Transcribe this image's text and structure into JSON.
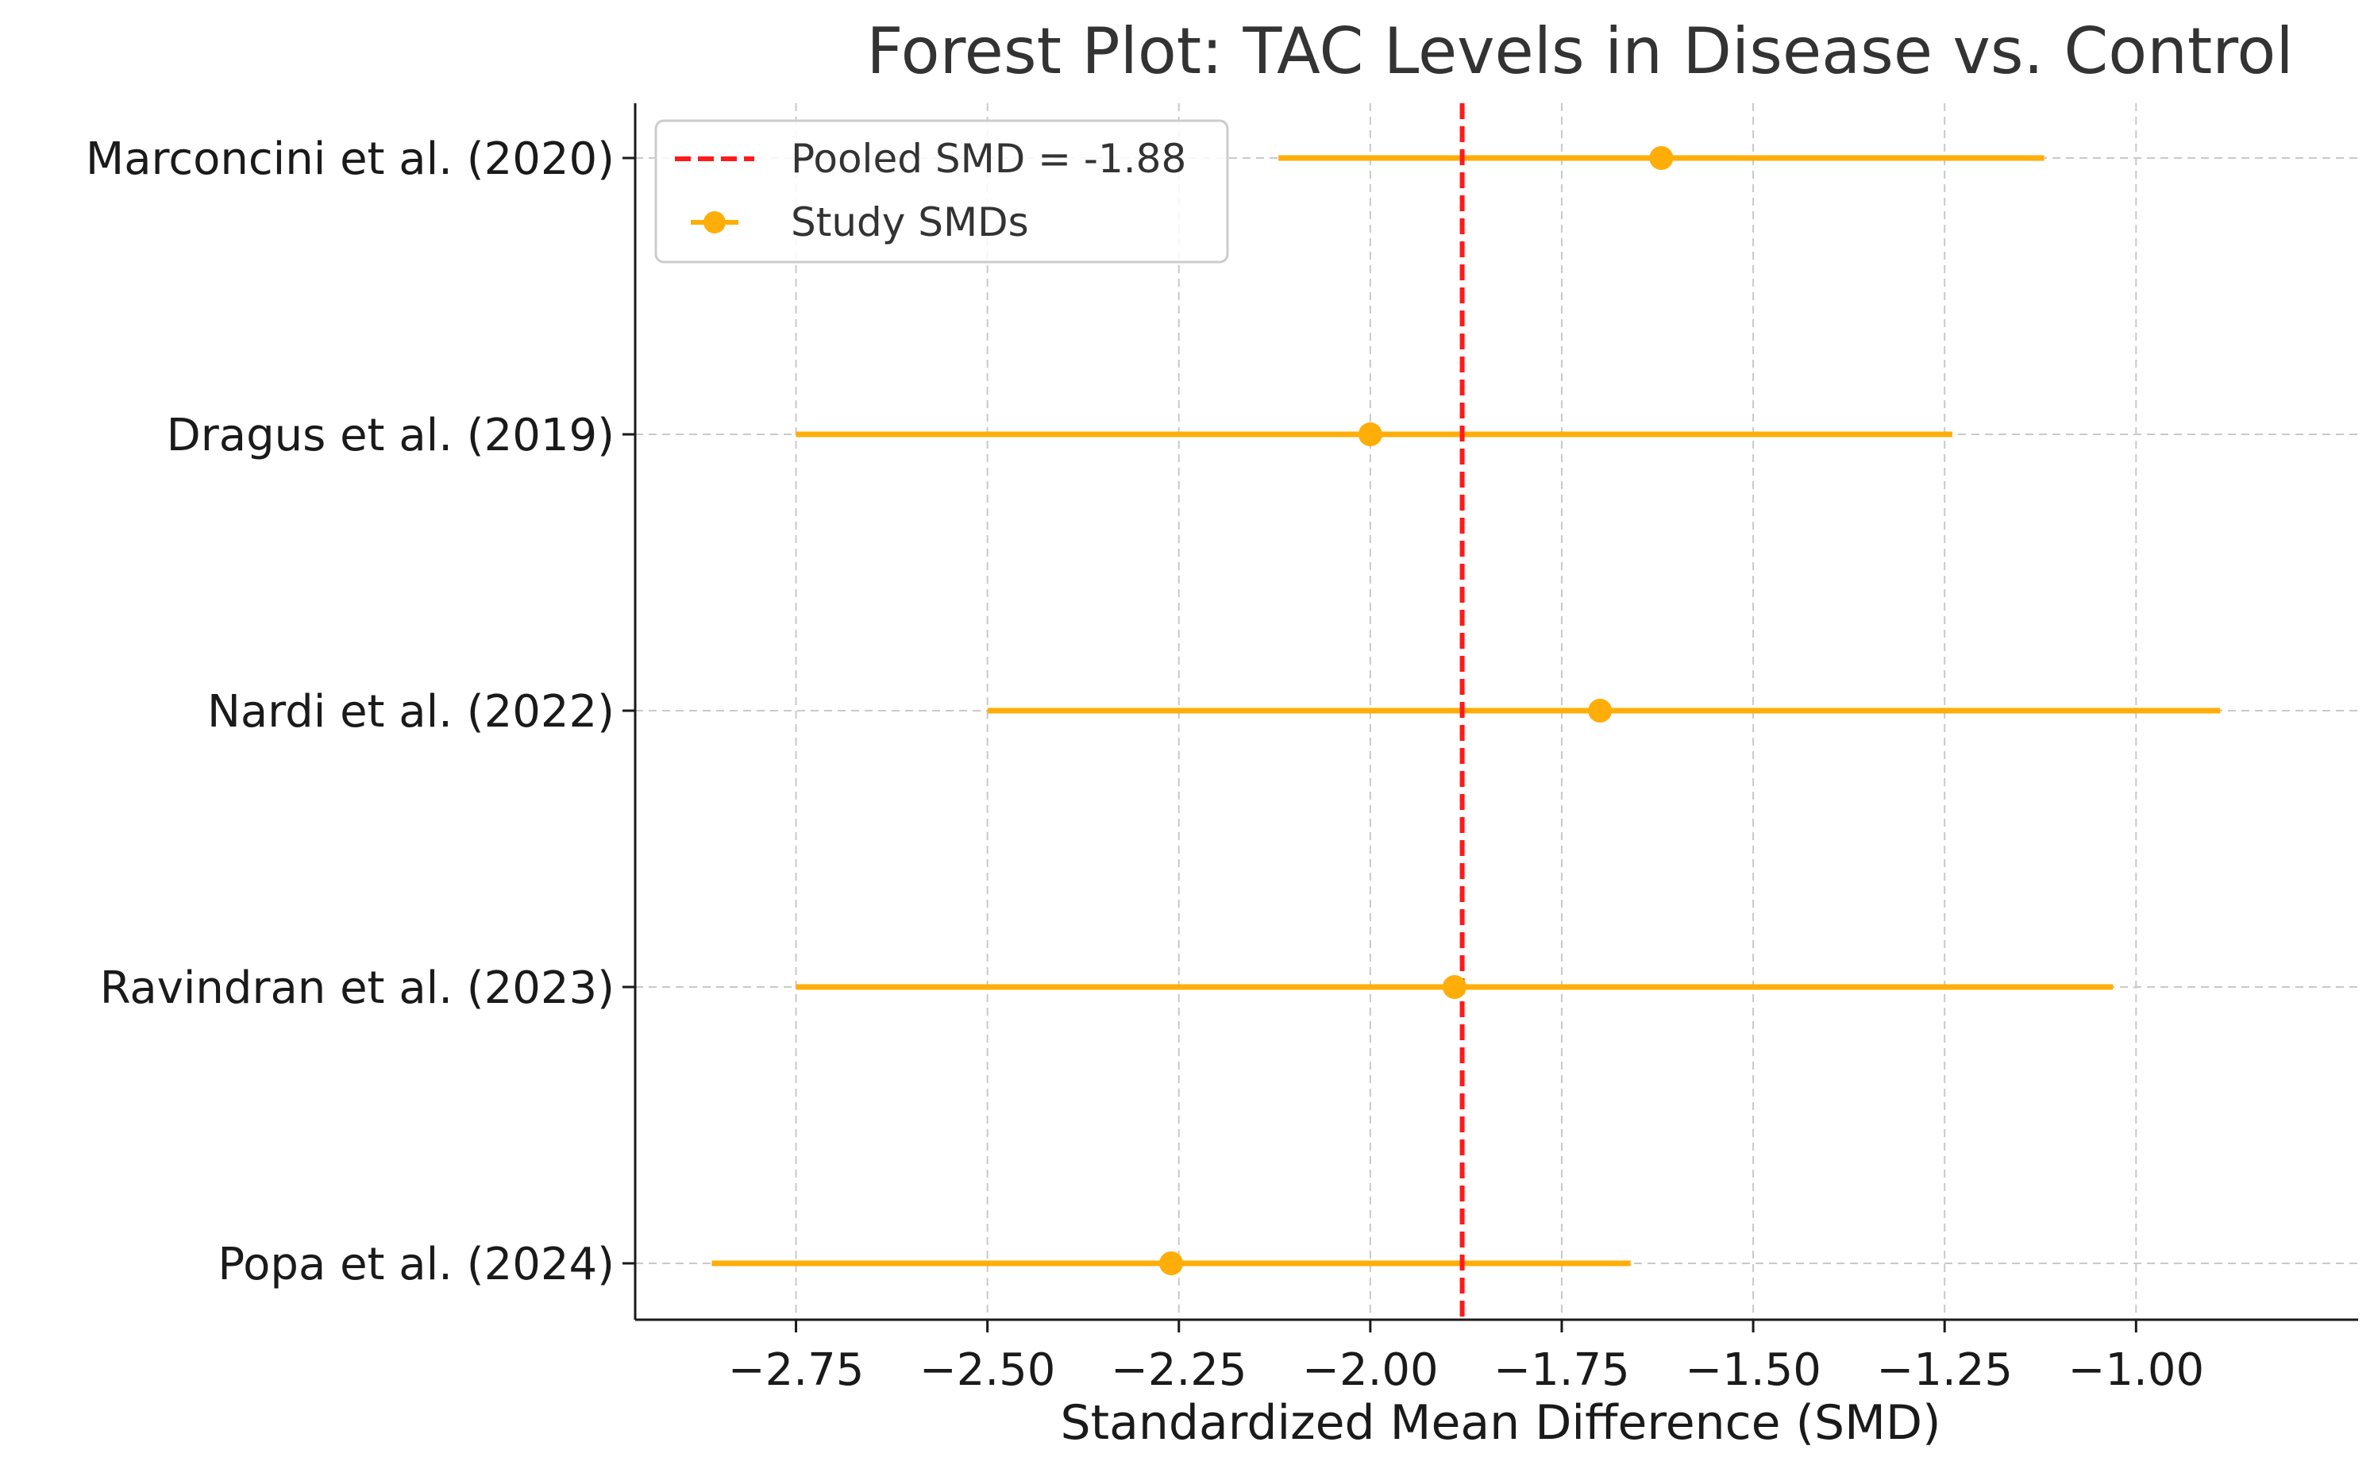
{
  "chart_data": {
    "type": "forest",
    "title": "Forest Plot: TAC Levels in Disease vs. Control",
    "xlabel": "Standardized Mean Difference (SMD)",
    "ylabel": "",
    "xlim": [
      -2.96,
      -0.71
    ],
    "xticks": [
      -2.75,
      -2.5,
      -2.25,
      -2.0,
      -1.75,
      -1.5,
      -1.25,
      -1.0
    ],
    "xtick_labels": [
      "−2.75",
      "−2.50",
      "−2.25",
      "−2.00",
      "−1.75",
      "−1.50",
      "−1.25",
      "−1.00"
    ],
    "grid": true,
    "legend_position": "upper-left",
    "studies": [
      {
        "name": "Marconcini et al. (2020)",
        "smd": -1.62,
        "ci_low": -2.12,
        "ci_high": -1.12
      },
      {
        "name": "Dragus et al. (2019)",
        "smd": -2.0,
        "ci_low": -2.75,
        "ci_high": -1.24
      },
      {
        "name": "Nardi et al. (2022)",
        "smd": -1.7,
        "ci_low": -2.5,
        "ci_high": -0.89
      },
      {
        "name": "Ravindran et al. (2023)",
        "smd": -1.89,
        "ci_low": -2.75,
        "ci_high": -1.03
      },
      {
        "name": "Popa et al. (2024)",
        "smd": -2.26,
        "ci_low": -2.86,
        "ci_high": -1.66
      }
    ],
    "pooled": {
      "smd": -1.88,
      "label": "Pooled SMD = -1.88"
    },
    "legend": {
      "pooled_label": "Pooled SMD = -1.88",
      "study_label": "Study SMDs"
    },
    "colors": {
      "study": "#ffad08",
      "pooled": "#ff1a1a",
      "grid": "#c9c9c9",
      "axis": "#1a1a1a"
    }
  }
}
